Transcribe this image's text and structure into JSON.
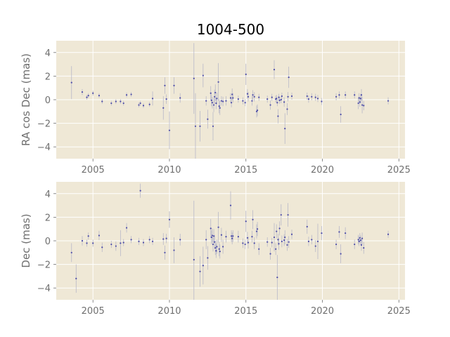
{
  "title": "1004-500",
  "colors": {
    "panel_bg": "#efe8d6",
    "grid": "#ffffff",
    "point": "#4c4ca8",
    "errorbar": "#b8b8c8",
    "tick_text": "#6f6f6f",
    "title_text": "#000000"
  },
  "chart_data": [
    {
      "type": "scatter",
      "title": "1004-500",
      "xlabel": "",
      "ylabel": "RA cos Dec (mas)",
      "xlim": [
        2002.6,
        2025.4
      ],
      "ylim": [
        -5.0,
        5.0
      ],
      "xticks": [
        2005,
        2010,
        2015,
        2020,
        2025
      ],
      "yticks": [
        -4,
        -2,
        0,
        2,
        4
      ],
      "grid": true,
      "points": [
        {
          "x": 2003.6,
          "y": 1.45,
          "err": 1.4
        },
        {
          "x": 2004.3,
          "y": 0.65,
          "err": 0.25
        },
        {
          "x": 2004.6,
          "y": 0.2,
          "err": 0.2
        },
        {
          "x": 2004.7,
          "y": 0.35,
          "err": 0.2
        },
        {
          "x": 2005.0,
          "y": 0.55,
          "err": 0.2
        },
        {
          "x": 2005.4,
          "y": 0.35,
          "err": 0.2
        },
        {
          "x": 2005.6,
          "y": -0.15,
          "err": 0.2
        },
        {
          "x": 2006.2,
          "y": -0.3,
          "err": 0.2
        },
        {
          "x": 2006.5,
          "y": -0.15,
          "err": 0.2
        },
        {
          "x": 2006.8,
          "y": -0.15,
          "err": 0.2
        },
        {
          "x": 2007.0,
          "y": -0.3,
          "err": 0.2
        },
        {
          "x": 2007.2,
          "y": 0.4,
          "err": 0.2
        },
        {
          "x": 2007.5,
          "y": 0.45,
          "err": 0.2
        },
        {
          "x": 2008.0,
          "y": -0.45,
          "err": 0.2
        },
        {
          "x": 2008.1,
          "y": -0.3,
          "err": 0.2
        },
        {
          "x": 2008.3,
          "y": -0.5,
          "err": 0.2
        },
        {
          "x": 2008.7,
          "y": -0.4,
          "err": 0.2
        },
        {
          "x": 2008.9,
          "y": 0.1,
          "err": 0.6
        },
        {
          "x": 2009.6,
          "y": -0.7,
          "err": 1.0
        },
        {
          "x": 2009.7,
          "y": 1.2,
          "err": 0.7
        },
        {
          "x": 2009.8,
          "y": 0.05,
          "err": 0.4
        },
        {
          "x": 2010.0,
          "y": -2.6,
          "err": 1.6
        },
        {
          "x": 2010.3,
          "y": 1.2,
          "err": 0.7
        },
        {
          "x": 2010.7,
          "y": 0.15,
          "err": 0.4
        },
        {
          "x": 2011.6,
          "y": 1.8,
          "err": 3.0
        },
        {
          "x": 2011.7,
          "y": -2.25,
          "err": 2.8
        },
        {
          "x": 2012.0,
          "y": -2.25,
          "err": 1.3
        },
        {
          "x": 2012.2,
          "y": 2.05,
          "err": 1.0
        },
        {
          "x": 2012.4,
          "y": -0.1,
          "err": 0.4
        },
        {
          "x": 2012.5,
          "y": -1.65,
          "err": 0.8
        },
        {
          "x": 2012.7,
          "y": 0.55,
          "err": 0.6
        },
        {
          "x": 2012.75,
          "y": -0.05,
          "err": 0.5
        },
        {
          "x": 2012.8,
          "y": -0.25,
          "err": 0.5
        },
        {
          "x": 2012.85,
          "y": -2.25,
          "err": 1.2
        },
        {
          "x": 2012.9,
          "y": -0.45,
          "err": 0.6
        },
        {
          "x": 2012.95,
          "y": 0.25,
          "err": 0.6
        },
        {
          "x": 2013.0,
          "y": 0.6,
          "err": 0.7
        },
        {
          "x": 2013.05,
          "y": -0.3,
          "err": 0.5
        },
        {
          "x": 2013.1,
          "y": 0.1,
          "err": 0.5
        },
        {
          "x": 2013.2,
          "y": 1.5,
          "err": 1.6
        },
        {
          "x": 2013.25,
          "y": -0.55,
          "err": 0.6
        },
        {
          "x": 2013.3,
          "y": -0.7,
          "err": 0.6
        },
        {
          "x": 2013.4,
          "y": -0.1,
          "err": 0.4
        },
        {
          "x": 2013.5,
          "y": -0.15,
          "err": 0.4
        },
        {
          "x": 2013.7,
          "y": -0.1,
          "err": 0.4
        },
        {
          "x": 2014.0,
          "y": 0.15,
          "err": 0.4
        },
        {
          "x": 2014.05,
          "y": -0.25,
          "err": 0.4
        },
        {
          "x": 2014.1,
          "y": 0.45,
          "err": 0.5
        },
        {
          "x": 2014.15,
          "y": 0.15,
          "err": 0.4
        },
        {
          "x": 2014.5,
          "y": 0.05,
          "err": 0.3
        },
        {
          "x": 2014.8,
          "y": -0.1,
          "err": 0.3
        },
        {
          "x": 2014.95,
          "y": -0.25,
          "err": 0.3
        },
        {
          "x": 2015.0,
          "y": 2.15,
          "err": 0.9
        },
        {
          "x": 2015.1,
          "y": 0.5,
          "err": 0.4
        },
        {
          "x": 2015.15,
          "y": 0.25,
          "err": 0.4
        },
        {
          "x": 2015.4,
          "y": -0.1,
          "err": 0.4
        },
        {
          "x": 2015.45,
          "y": 0.4,
          "err": 0.4
        },
        {
          "x": 2015.55,
          "y": 0.25,
          "err": 0.4
        },
        {
          "x": 2015.7,
          "y": -1.0,
          "err": 0.5
        },
        {
          "x": 2015.75,
          "y": -0.9,
          "err": 0.5
        },
        {
          "x": 2015.85,
          "y": 0.2,
          "err": 0.3
        },
        {
          "x": 2016.4,
          "y": 0.05,
          "err": 0.3
        },
        {
          "x": 2016.6,
          "y": -0.45,
          "err": 0.4
        },
        {
          "x": 2016.7,
          "y": 0.2,
          "err": 0.3
        },
        {
          "x": 2016.85,
          "y": 2.55,
          "err": 0.8
        },
        {
          "x": 2016.95,
          "y": 0.05,
          "err": 0.3
        },
        {
          "x": 2017.0,
          "y": 0.1,
          "err": 0.3
        },
        {
          "x": 2017.05,
          "y": -0.25,
          "err": 0.3
        },
        {
          "x": 2017.1,
          "y": -1.4,
          "err": 0.6
        },
        {
          "x": 2017.15,
          "y": 0.2,
          "err": 0.3
        },
        {
          "x": 2017.2,
          "y": -0.05,
          "err": 0.3
        },
        {
          "x": 2017.3,
          "y": 0.0,
          "err": 0.3
        },
        {
          "x": 2017.35,
          "y": 0.3,
          "err": 0.3
        },
        {
          "x": 2017.5,
          "y": -0.2,
          "err": 0.4
        },
        {
          "x": 2017.55,
          "y": -2.45,
          "err": 1.3
        },
        {
          "x": 2017.7,
          "y": -0.8,
          "err": 0.5
        },
        {
          "x": 2017.75,
          "y": 0.25,
          "err": 0.4
        },
        {
          "x": 2017.8,
          "y": 1.9,
          "err": 0.9
        },
        {
          "x": 2018.0,
          "y": 0.3,
          "err": 0.3
        },
        {
          "x": 2019.0,
          "y": 0.3,
          "err": 0.3
        },
        {
          "x": 2019.1,
          "y": 0.05,
          "err": 0.3
        },
        {
          "x": 2019.3,
          "y": 0.25,
          "err": 0.3
        },
        {
          "x": 2019.55,
          "y": 0.2,
          "err": 0.3
        },
        {
          "x": 2019.7,
          "y": 0.1,
          "err": 0.3
        },
        {
          "x": 2019.95,
          "y": -0.15,
          "err": 0.3
        },
        {
          "x": 2020.9,
          "y": 0.25,
          "err": 0.3
        },
        {
          "x": 2021.1,
          "y": 0.4,
          "err": 0.3
        },
        {
          "x": 2021.2,
          "y": -1.25,
          "err": 0.7
        },
        {
          "x": 2021.5,
          "y": 0.4,
          "err": 0.3
        },
        {
          "x": 2022.1,
          "y": 0.4,
          "err": 0.3
        },
        {
          "x": 2022.35,
          "y": -0.3,
          "err": 0.5
        },
        {
          "x": 2022.4,
          "y": 0.15,
          "err": 0.4
        },
        {
          "x": 2022.45,
          "y": -0.2,
          "err": 0.4
        },
        {
          "x": 2022.5,
          "y": 0.1,
          "err": 0.4
        },
        {
          "x": 2022.55,
          "y": 0.4,
          "err": 0.5
        },
        {
          "x": 2022.6,
          "y": -0.45,
          "err": 0.7
        },
        {
          "x": 2022.7,
          "y": -0.5,
          "err": 0.4
        },
        {
          "x": 2024.3,
          "y": -0.1,
          "err": 0.3
        }
      ]
    },
    {
      "type": "scatter",
      "title": "",
      "xlabel": "",
      "ylabel": "Dec (mas)",
      "xlim": [
        2002.6,
        2025.4
      ],
      "ylim": [
        -5.0,
        5.0
      ],
      "xticks": [
        2005,
        2010,
        2015,
        2020,
        2025
      ],
      "yticks": [
        -4,
        -2,
        0,
        2,
        4
      ],
      "grid": true,
      "points": [
        {
          "x": 2003.6,
          "y": -1.0,
          "err": 0.8
        },
        {
          "x": 2003.9,
          "y": -3.2,
          "err": 1.2
        },
        {
          "x": 2004.3,
          "y": 0.0,
          "err": 0.4
        },
        {
          "x": 2004.6,
          "y": -0.2,
          "err": 0.3
        },
        {
          "x": 2004.7,
          "y": 0.4,
          "err": 0.3
        },
        {
          "x": 2005.0,
          "y": -0.2,
          "err": 0.3
        },
        {
          "x": 2005.4,
          "y": 0.45,
          "err": 0.4
        },
        {
          "x": 2005.6,
          "y": -0.55,
          "err": 0.4
        },
        {
          "x": 2006.2,
          "y": -0.3,
          "err": 0.3
        },
        {
          "x": 2006.5,
          "y": -0.45,
          "err": 0.4
        },
        {
          "x": 2006.8,
          "y": -0.2,
          "err": 1.1
        },
        {
          "x": 2007.0,
          "y": -0.15,
          "err": 0.3
        },
        {
          "x": 2007.2,
          "y": 1.1,
          "err": 0.4
        },
        {
          "x": 2007.5,
          "y": 0.1,
          "err": 0.3
        },
        {
          "x": 2008.0,
          "y": -0.05,
          "err": 0.3
        },
        {
          "x": 2008.1,
          "y": 4.25,
          "err": 0.6
        },
        {
          "x": 2008.3,
          "y": -0.15,
          "err": 0.3
        },
        {
          "x": 2008.7,
          "y": 0.1,
          "err": 0.3
        },
        {
          "x": 2008.9,
          "y": -0.05,
          "err": 0.3
        },
        {
          "x": 2009.6,
          "y": 0.15,
          "err": 0.5
        },
        {
          "x": 2009.7,
          "y": -1.0,
          "err": 0.6
        },
        {
          "x": 2009.8,
          "y": 0.2,
          "err": 0.4
        },
        {
          "x": 2010.0,
          "y": 1.8,
          "err": 0.7
        },
        {
          "x": 2010.3,
          "y": -0.8,
          "err": 1.1
        },
        {
          "x": 2010.7,
          "y": 0.1,
          "err": 0.5
        },
        {
          "x": 2011.6,
          "y": -1.6,
          "err": 5.0
        },
        {
          "x": 2012.0,
          "y": -2.6,
          "err": 1.3
        },
        {
          "x": 2012.2,
          "y": -2.1,
          "err": 1.6
        },
        {
          "x": 2012.4,
          "y": 0.1,
          "err": 0.8
        },
        {
          "x": 2012.5,
          "y": -1.45,
          "err": 1.0
        },
        {
          "x": 2012.7,
          "y": 1.05,
          "err": 0.8
        },
        {
          "x": 2012.75,
          "y": 0.3,
          "err": 0.6
        },
        {
          "x": 2012.8,
          "y": 0.45,
          "err": 0.6
        },
        {
          "x": 2012.85,
          "y": -0.3,
          "err": 0.6
        },
        {
          "x": 2012.9,
          "y": 0.4,
          "err": 0.6
        },
        {
          "x": 2012.95,
          "y": -0.1,
          "err": 0.6
        },
        {
          "x": 2013.0,
          "y": -0.6,
          "err": 0.6
        },
        {
          "x": 2013.05,
          "y": -0.85,
          "err": 0.6
        },
        {
          "x": 2013.1,
          "y": -0.5,
          "err": 0.6
        },
        {
          "x": 2013.2,
          "y": 1.15,
          "err": 1.3
        },
        {
          "x": 2013.25,
          "y": -0.7,
          "err": 0.6
        },
        {
          "x": 2013.3,
          "y": -0.9,
          "err": 0.6
        },
        {
          "x": 2013.4,
          "y": 0.5,
          "err": 0.6
        },
        {
          "x": 2013.5,
          "y": -0.5,
          "err": 0.6
        },
        {
          "x": 2013.7,
          "y": 0.35,
          "err": 0.5
        },
        {
          "x": 2014.0,
          "y": 3.0,
          "err": 1.2
        },
        {
          "x": 2014.05,
          "y": 0.4,
          "err": 0.5
        },
        {
          "x": 2014.1,
          "y": 0.2,
          "err": 0.5
        },
        {
          "x": 2014.15,
          "y": 0.4,
          "err": 0.5
        },
        {
          "x": 2014.5,
          "y": 0.35,
          "err": 0.5
        },
        {
          "x": 2014.8,
          "y": -0.2,
          "err": 0.4
        },
        {
          "x": 2014.95,
          "y": -0.3,
          "err": 0.4
        },
        {
          "x": 2015.0,
          "y": 1.65,
          "err": 0.9
        },
        {
          "x": 2015.1,
          "y": 0.25,
          "err": 0.5
        },
        {
          "x": 2015.15,
          "y": -0.15,
          "err": 0.5
        },
        {
          "x": 2015.4,
          "y": 0.35,
          "err": 0.5
        },
        {
          "x": 2015.45,
          "y": 1.8,
          "err": 0.8
        },
        {
          "x": 2015.55,
          "y": -0.2,
          "err": 0.5
        },
        {
          "x": 2015.7,
          "y": 0.8,
          "err": 0.6
        },
        {
          "x": 2015.75,
          "y": 1.0,
          "err": 0.6
        },
        {
          "x": 2015.85,
          "y": -0.7,
          "err": 0.5
        },
        {
          "x": 2016.4,
          "y": -0.1,
          "err": 0.4
        },
        {
          "x": 2016.6,
          "y": -1.1,
          "err": 0.5
        },
        {
          "x": 2016.7,
          "y": -0.15,
          "err": 0.4
        },
        {
          "x": 2016.85,
          "y": 0.3,
          "err": 1.2
        },
        {
          "x": 2016.95,
          "y": -0.7,
          "err": 0.5
        },
        {
          "x": 2017.0,
          "y": 0.8,
          "err": 0.6
        },
        {
          "x": 2017.05,
          "y": -3.1,
          "err": 1.9
        },
        {
          "x": 2017.1,
          "y": 0.1,
          "err": 0.5
        },
        {
          "x": 2017.15,
          "y": -0.25,
          "err": 0.5
        },
        {
          "x": 2017.2,
          "y": 1.05,
          "err": 0.6
        },
        {
          "x": 2017.3,
          "y": 2.2,
          "err": 0.9
        },
        {
          "x": 2017.35,
          "y": -0.05,
          "err": 0.5
        },
        {
          "x": 2017.5,
          "y": 0.05,
          "err": 0.5
        },
        {
          "x": 2017.55,
          "y": 0.3,
          "err": 0.6
        },
        {
          "x": 2017.7,
          "y": -0.35,
          "err": 0.5
        },
        {
          "x": 2017.75,
          "y": 2.2,
          "err": 1.0
        },
        {
          "x": 2017.8,
          "y": -0.1,
          "err": 0.5
        },
        {
          "x": 2018.0,
          "y": 0.55,
          "err": 0.4
        },
        {
          "x": 2019.0,
          "y": 1.2,
          "err": 0.6
        },
        {
          "x": 2019.1,
          "y": -0.05,
          "err": 0.4
        },
        {
          "x": 2019.3,
          "y": 0.1,
          "err": 0.4
        },
        {
          "x": 2019.55,
          "y": -0.45,
          "err": 0.5
        },
        {
          "x": 2019.7,
          "y": -0.05,
          "err": 1.5
        },
        {
          "x": 2019.95,
          "y": 0.65,
          "err": 0.6
        },
        {
          "x": 2020.9,
          "y": -0.3,
          "err": 0.4
        },
        {
          "x": 2021.1,
          "y": 0.75,
          "err": 0.5
        },
        {
          "x": 2021.2,
          "y": -1.1,
          "err": 0.8
        },
        {
          "x": 2021.5,
          "y": 0.65,
          "err": 0.5
        },
        {
          "x": 2022.1,
          "y": -0.3,
          "err": 0.4
        },
        {
          "x": 2022.35,
          "y": 0.1,
          "err": 0.4
        },
        {
          "x": 2022.4,
          "y": -0.05,
          "err": 0.4
        },
        {
          "x": 2022.45,
          "y": 0.25,
          "err": 0.4
        },
        {
          "x": 2022.5,
          "y": 0.05,
          "err": 0.4
        },
        {
          "x": 2022.55,
          "y": -0.35,
          "err": 0.5
        },
        {
          "x": 2022.6,
          "y": 0.2,
          "err": 0.5
        },
        {
          "x": 2022.7,
          "y": -0.6,
          "err": 0.5
        },
        {
          "x": 2024.3,
          "y": 0.55,
          "err": 0.3
        }
      ]
    }
  ]
}
